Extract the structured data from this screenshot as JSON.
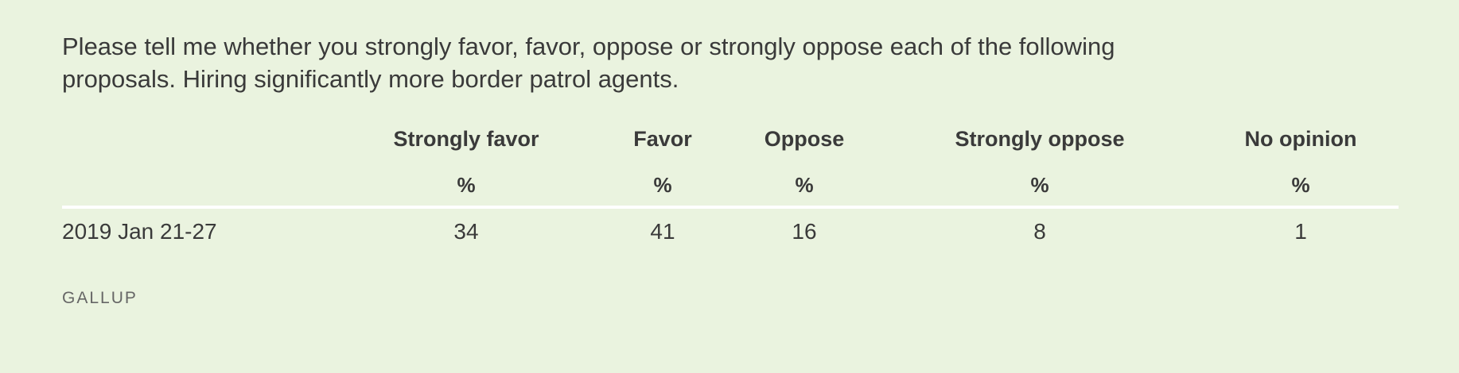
{
  "title": "Please tell me whether you strongly favor, favor, oppose or strongly oppose each of the following proposals. Hiring significantly more border patrol agents.",
  "source": "GALLUP",
  "chart_data": {
    "type": "table",
    "title": "Please tell me whether you strongly favor, favor, oppose or strongly oppose each of the following proposals. Hiring significantly more border patrol agents.",
    "columns": [
      "Strongly favor",
      "Favor",
      "Oppose",
      "Strongly oppose",
      "No opinion"
    ],
    "units": [
      "%",
      "%",
      "%",
      "%",
      "%"
    ],
    "rows": [
      {
        "label": "2019 Jan 21-27",
        "values": [
          "34",
          "41",
          "16",
          "8",
          "1"
        ]
      }
    ]
  }
}
